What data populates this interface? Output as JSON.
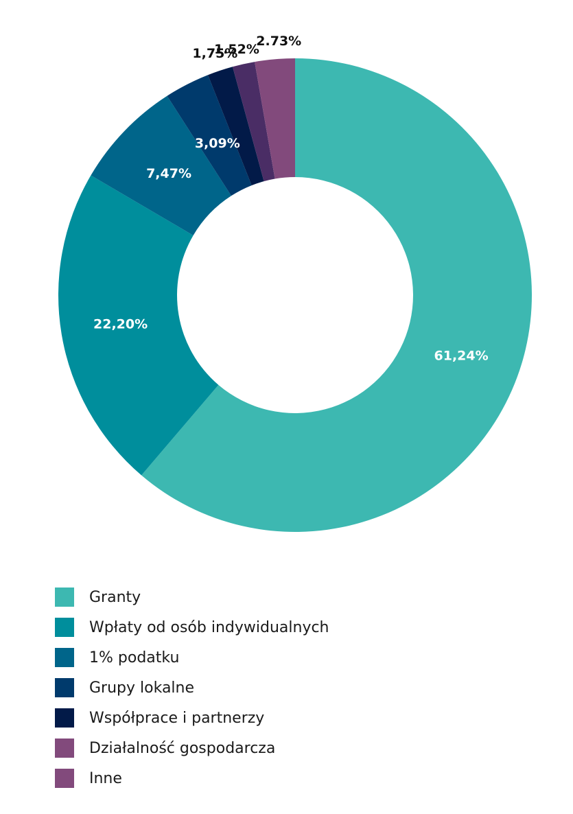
{
  "chart_data": {
    "type": "pie",
    "donut": true,
    "categories": [
      "Granty",
      "Wpłaty od osób indywidualnych",
      "1% podatku",
      "Grupy lokalne",
      "Współprace i partnerzy",
      "Działalność gospodarcza",
      "Inne"
    ],
    "values": [
      61.24,
      22.2,
      7.47,
      3.09,
      1.75,
      1.52,
      2.73
    ],
    "data_labels": [
      "61,24%",
      "22,20%",
      "7,47%",
      "3,09%",
      "1,75%",
      "1.52%",
      "2.73%"
    ],
    "colors": [
      "#3db8b1",
      "#008e9c",
      "#00658a",
      "#003a6c",
      "#021a48",
      "#4a2d65",
      "#824a7c"
    ],
    "label_colors": [
      "#ffffff",
      "#ffffff",
      "#ffffff",
      "#ffffff",
      "#111111",
      "#111111",
      "#111111"
    ],
    "legend_colors": [
      "#3db8b1",
      "#008e9c",
      "#00658a",
      "#003a6c",
      "#021a48",
      "#824a7c",
      "#824a7c"
    ],
    "legend_position": "bottom-left"
  }
}
